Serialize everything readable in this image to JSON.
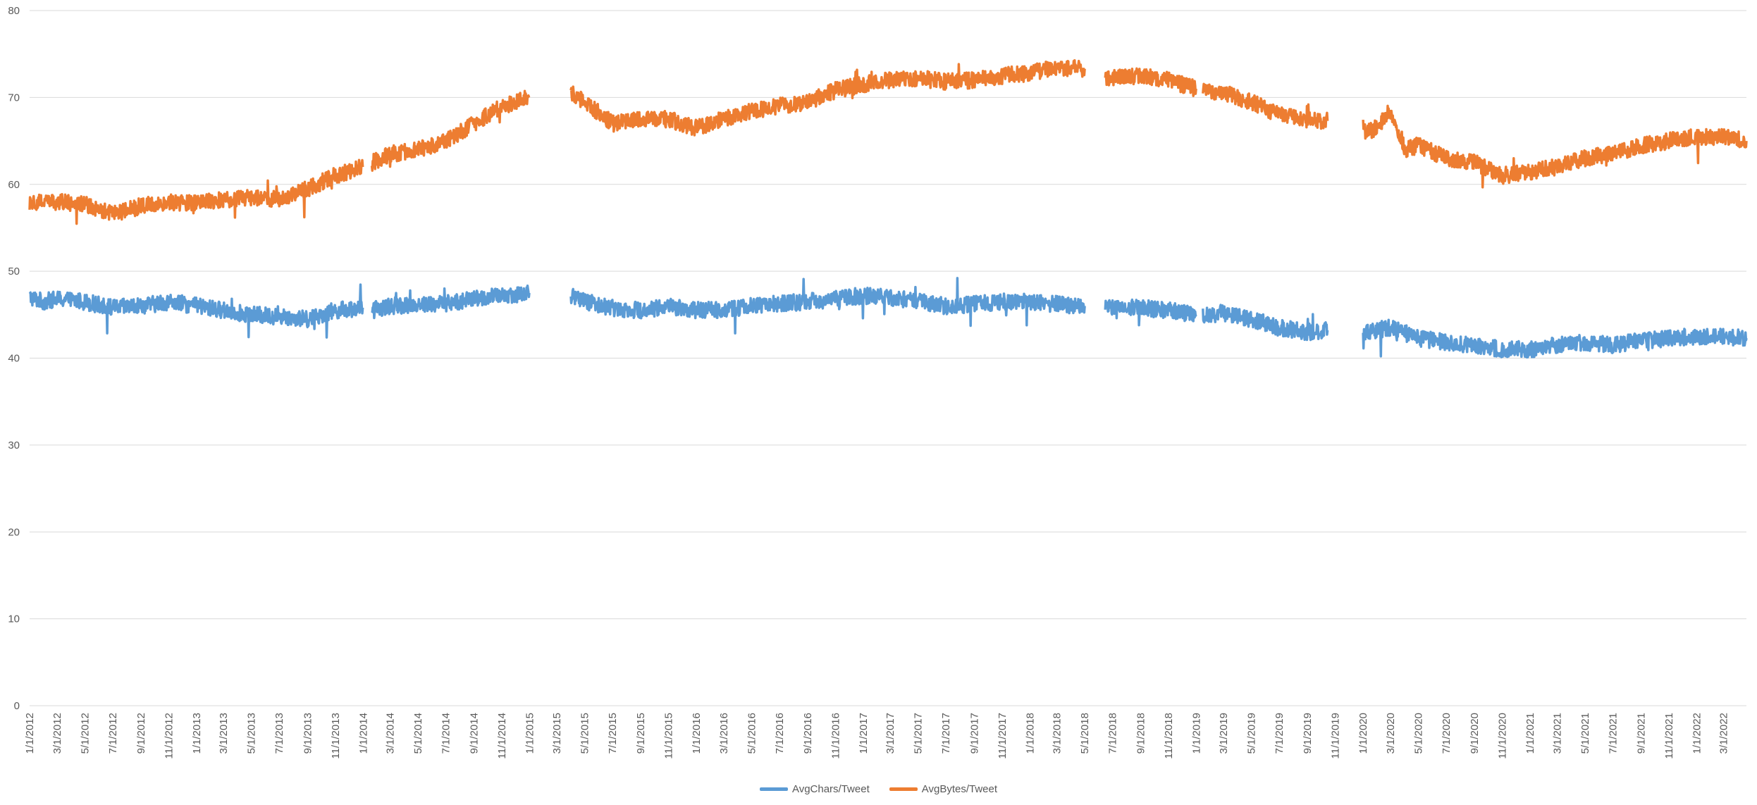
{
  "chart_data": {
    "type": "line",
    "title": "",
    "xlabel": "",
    "ylabel": "",
    "ylim": [
      0,
      80
    ],
    "yticks": [
      "0",
      "10",
      "20",
      "30",
      "40",
      "50",
      "60",
      "70",
      "80"
    ],
    "grid": "horizontal",
    "legend_position": "bottom",
    "x_date_range": [
      "2012-01-01",
      "2022-04-20"
    ],
    "x_tick_labels": [
      "1/1/2012",
      "3/1/2012",
      "5/1/2012",
      "7/1/2012",
      "9/1/2012",
      "11/1/2012",
      "1/1/2013",
      "3/1/2013",
      "5/1/2013",
      "7/1/2013",
      "9/1/2013",
      "11/1/2013",
      "1/1/2014",
      "3/1/2014",
      "5/1/2014",
      "7/1/2014",
      "9/1/2014",
      "11/1/2014",
      "1/1/2015",
      "3/1/2015",
      "5/1/2015",
      "7/1/2015",
      "9/1/2015",
      "11/1/2015",
      "1/1/2016",
      "3/1/2016",
      "5/1/2016",
      "7/1/2016",
      "9/1/2016",
      "11/1/2016",
      "1/1/2017",
      "3/1/2017",
      "5/1/2017",
      "7/1/2017",
      "9/1/2017",
      "11/1/2017",
      "1/1/2018",
      "3/1/2018",
      "5/1/2018",
      "7/1/2018",
      "9/1/2018",
      "11/1/2018",
      "1/1/2019",
      "3/1/2019",
      "5/1/2019",
      "7/1/2019",
      "9/1/2019",
      "11/1/2019",
      "1/1/2020",
      "3/1/2020",
      "5/1/2020",
      "7/1/2020",
      "9/1/2020",
      "11/1/2020",
      "1/1/2021",
      "3/1/2021",
      "5/1/2021",
      "7/1/2021",
      "9/1/2021",
      "11/1/2021",
      "1/1/2022",
      "3/1/2022"
    ],
    "series": [
      {
        "name": "AvgChars/Tweet",
        "color": "#5B9BD5",
        "segments": [
          [
            [
              "2012-01-01",
              47.0
            ],
            [
              "2012-02-01",
              46.5
            ],
            [
              "2012-03-01",
              46.8
            ],
            [
              "2012-05-01",
              46.5
            ],
            [
              "2012-07-01",
              45.8
            ],
            [
              "2012-09-01",
              46.0
            ],
            [
              "2012-11-01",
              46.5
            ],
            [
              "2013-01-01",
              46.0
            ],
            [
              "2013-03-01",
              45.5
            ],
            [
              "2013-05-01",
              45.0
            ],
            [
              "2013-07-01",
              44.8
            ],
            [
              "2013-09-01",
              44.5
            ],
            [
              "2013-11-01",
              45.5
            ],
            [
              "2013-12-31",
              45.8
            ]
          ],
          [
            [
              "2014-01-20",
              45.5
            ],
            [
              "2014-03-01",
              46.0
            ],
            [
              "2014-05-01",
              46.2
            ],
            [
              "2014-07-01",
              46.3
            ],
            [
              "2014-09-01",
              46.8
            ],
            [
              "2014-11-01",
              47.2
            ],
            [
              "2014-12-31",
              47.5
            ]
          ],
          [
            [
              "2015-04-01",
              47.2
            ],
            [
              "2015-05-01",
              46.5
            ],
            [
              "2015-07-01",
              45.8
            ],
            [
              "2015-09-01",
              45.5
            ],
            [
              "2015-11-01",
              46.0
            ],
            [
              "2016-01-01",
              45.5
            ],
            [
              "2016-03-01",
              45.6
            ],
            [
              "2016-05-01",
              46.0
            ],
            [
              "2016-07-01",
              46.3
            ],
            [
              "2016-09-01",
              46.5
            ],
            [
              "2016-11-01",
              46.8
            ],
            [
              "2017-01-01",
              47.2
            ],
            [
              "2017-03-01",
              47.0
            ],
            [
              "2017-05-01",
              46.5
            ],
            [
              "2017-07-01",
              46.0
            ],
            [
              "2017-09-01",
              46.2
            ],
            [
              "2017-11-01",
              46.5
            ],
            [
              "2018-01-01",
              46.5
            ],
            [
              "2018-03-01",
              46.2
            ],
            [
              "2018-05-01",
              46.0
            ]
          ],
          [
            [
              "2018-06-15",
              46.0
            ],
            [
              "2018-07-01",
              45.8
            ],
            [
              "2018-09-01",
              45.8
            ],
            [
              "2018-11-01",
              45.5
            ],
            [
              "2018-12-31",
              45.0
            ]
          ],
          [
            [
              "2019-01-15",
              45.0
            ],
            [
              "2019-03-01",
              45.2
            ],
            [
              "2019-05-01",
              44.5
            ],
            [
              "2019-07-01",
              43.5
            ],
            [
              "2019-09-01",
              43.0
            ],
            [
              "2019-10-15",
              43.2
            ]
          ],
          [
            [
              "2020-01-01",
              43.0
            ],
            [
              "2020-03-01",
              43.5
            ],
            [
              "2020-05-01",
              42.3
            ],
            [
              "2020-07-01",
              41.8
            ],
            [
              "2020-09-01",
              41.5
            ],
            [
              "2020-11-01",
              41.0
            ],
            [
              "2021-01-01",
              41.0
            ],
            [
              "2021-03-01",
              41.5
            ],
            [
              "2021-05-01",
              41.8
            ],
            [
              "2021-07-01",
              41.5
            ],
            [
              "2021-09-01",
              42.0
            ],
            [
              "2021-11-01",
              42.3
            ],
            [
              "2022-01-01",
              42.5
            ],
            [
              "2022-03-01",
              42.5
            ],
            [
              "2022-04-20",
              42.3
            ]
          ]
        ]
      },
      {
        "name": "AvgBytes/Tweet",
        "color": "#ED7D31",
        "segments": [
          [
            [
              "2012-01-01",
              58.0
            ],
            [
              "2012-03-01",
              58.0
            ],
            [
              "2012-05-01",
              57.8
            ],
            [
              "2012-07-01",
              56.5
            ],
            [
              "2012-09-01",
              57.5
            ],
            [
              "2012-11-01",
              58.0
            ],
            [
              "2013-01-01",
              57.8
            ],
            [
              "2013-03-01",
              58.2
            ],
            [
              "2013-05-01",
              58.5
            ],
            [
              "2013-07-01",
              58.3
            ],
            [
              "2013-09-01",
              59.5
            ],
            [
              "2013-11-01",
              61.0
            ],
            [
              "2013-12-31",
              62.0
            ]
          ],
          [
            [
              "2014-01-20",
              62.5
            ],
            [
              "2014-03-01",
              63.5
            ],
            [
              "2014-05-01",
              64.0
            ],
            [
              "2014-07-01",
              65.0
            ],
            [
              "2014-09-01",
              67.0
            ],
            [
              "2014-11-01",
              69.0
            ],
            [
              "2014-12-31",
              70.0
            ]
          ],
          [
            [
              "2015-04-01",
              70.5
            ],
            [
              "2015-05-01",
              69.5
            ],
            [
              "2015-07-01",
              67.0
            ],
            [
              "2015-09-01",
              67.5
            ],
            [
              "2015-11-01",
              67.5
            ],
            [
              "2016-01-01",
              66.5
            ],
            [
              "2016-03-01",
              67.5
            ],
            [
              "2016-05-01",
              68.5
            ],
            [
              "2016-07-01",
              69.0
            ],
            [
              "2016-09-01",
              69.5
            ],
            [
              "2016-11-01",
              70.8
            ],
            [
              "2017-01-01",
              71.5
            ],
            [
              "2017-03-01",
              72.0
            ],
            [
              "2017-05-01",
              72.2
            ],
            [
              "2017-07-01",
              71.8
            ],
            [
              "2017-09-01",
              72.0
            ],
            [
              "2017-11-01",
              72.5
            ],
            [
              "2018-01-01",
              72.8
            ],
            [
              "2018-03-01",
              73.5
            ],
            [
              "2018-05-01",
              73.3
            ]
          ],
          [
            [
              "2018-06-15",
              72.0
            ],
            [
              "2018-07-01",
              72.3
            ],
            [
              "2018-09-01",
              72.5
            ],
            [
              "2018-11-01",
              72.0
            ],
            [
              "2018-12-31",
              71.0
            ]
          ],
          [
            [
              "2019-01-15",
              70.8
            ],
            [
              "2019-03-01",
              70.5
            ],
            [
              "2019-05-01",
              69.5
            ],
            [
              "2019-07-01",
              68.0
            ],
            [
              "2019-09-01",
              67.5
            ],
            [
              "2019-10-15",
              67.3
            ]
          ],
          [
            [
              "2020-01-01",
              66.0
            ],
            [
              "2020-02-01",
              66.5
            ],
            [
              "2020-03-01",
              68.5
            ],
            [
              "2020-04-01",
              64.0
            ],
            [
              "2020-05-01",
              64.5
            ],
            [
              "2020-07-01",
              63.0
            ],
            [
              "2020-09-01",
              62.5
            ],
            [
              "2020-11-01",
              61.0
            ],
            [
              "2021-01-01",
              61.5
            ],
            [
              "2021-03-01",
              62.0
            ],
            [
              "2021-05-01",
              63.0
            ],
            [
              "2021-07-01",
              63.5
            ],
            [
              "2021-09-01",
              64.5
            ],
            [
              "2021-11-01",
              65.0
            ],
            [
              "2022-01-01",
              65.5
            ],
            [
              "2022-03-01",
              65.5
            ],
            [
              "2022-04-20",
              65.0
            ]
          ]
        ]
      }
    ]
  }
}
